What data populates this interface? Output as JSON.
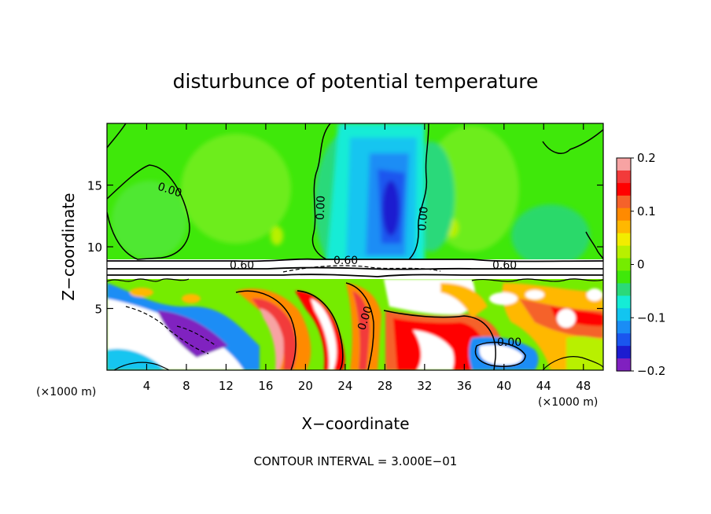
{
  "chart_data": {
    "type": "heatmap",
    "title": "disturbunce of potential temperature",
    "xlabel": "X−coordinate",
    "ylabel": "Z−coordinate",
    "x_unit": "(×1000 m)",
    "y_unit": "(×1000 m)",
    "xlim": [
      0,
      50
    ],
    "ylim": [
      0,
      20
    ],
    "x_ticks": [
      4,
      8,
      12,
      16,
      20,
      24,
      28,
      32,
      36,
      40,
      44,
      48
    ],
    "y_ticks": [
      5,
      10,
      15
    ],
    "colorbar": {
      "range": [
        -0.2,
        0.2
      ],
      "ticks": [
        0.2,
        0.1,
        0,
        -0.1,
        -0.2
      ],
      "tick_labels": [
        "0.2",
        "0.1",
        "0",
        "−0.1",
        "−0.2"
      ],
      "colors": [
        "#f7a3a3",
        "#f23a3a",
        "#ff0000",
        "#f5622a",
        "#ff8a00",
        "#ffb800",
        "#f2ec00",
        "#b8f000",
        "#75ec00",
        "#3fe80a",
        "#2bd97a",
        "#15ecd6",
        "#12c5f0",
        "#1a8df5",
        "#1a56ef",
        "#1c1cd0",
        "#8020c0"
      ]
    },
    "contour_labels": [
      "0.00",
      "0.00",
      "0.00",
      "0.60",
      "0.60",
      "0.60",
      "0.00",
      "0.00"
    ],
    "contour_interval": "CONTOUR INTERVAL = 3.000E−01",
    "grid": false
  }
}
